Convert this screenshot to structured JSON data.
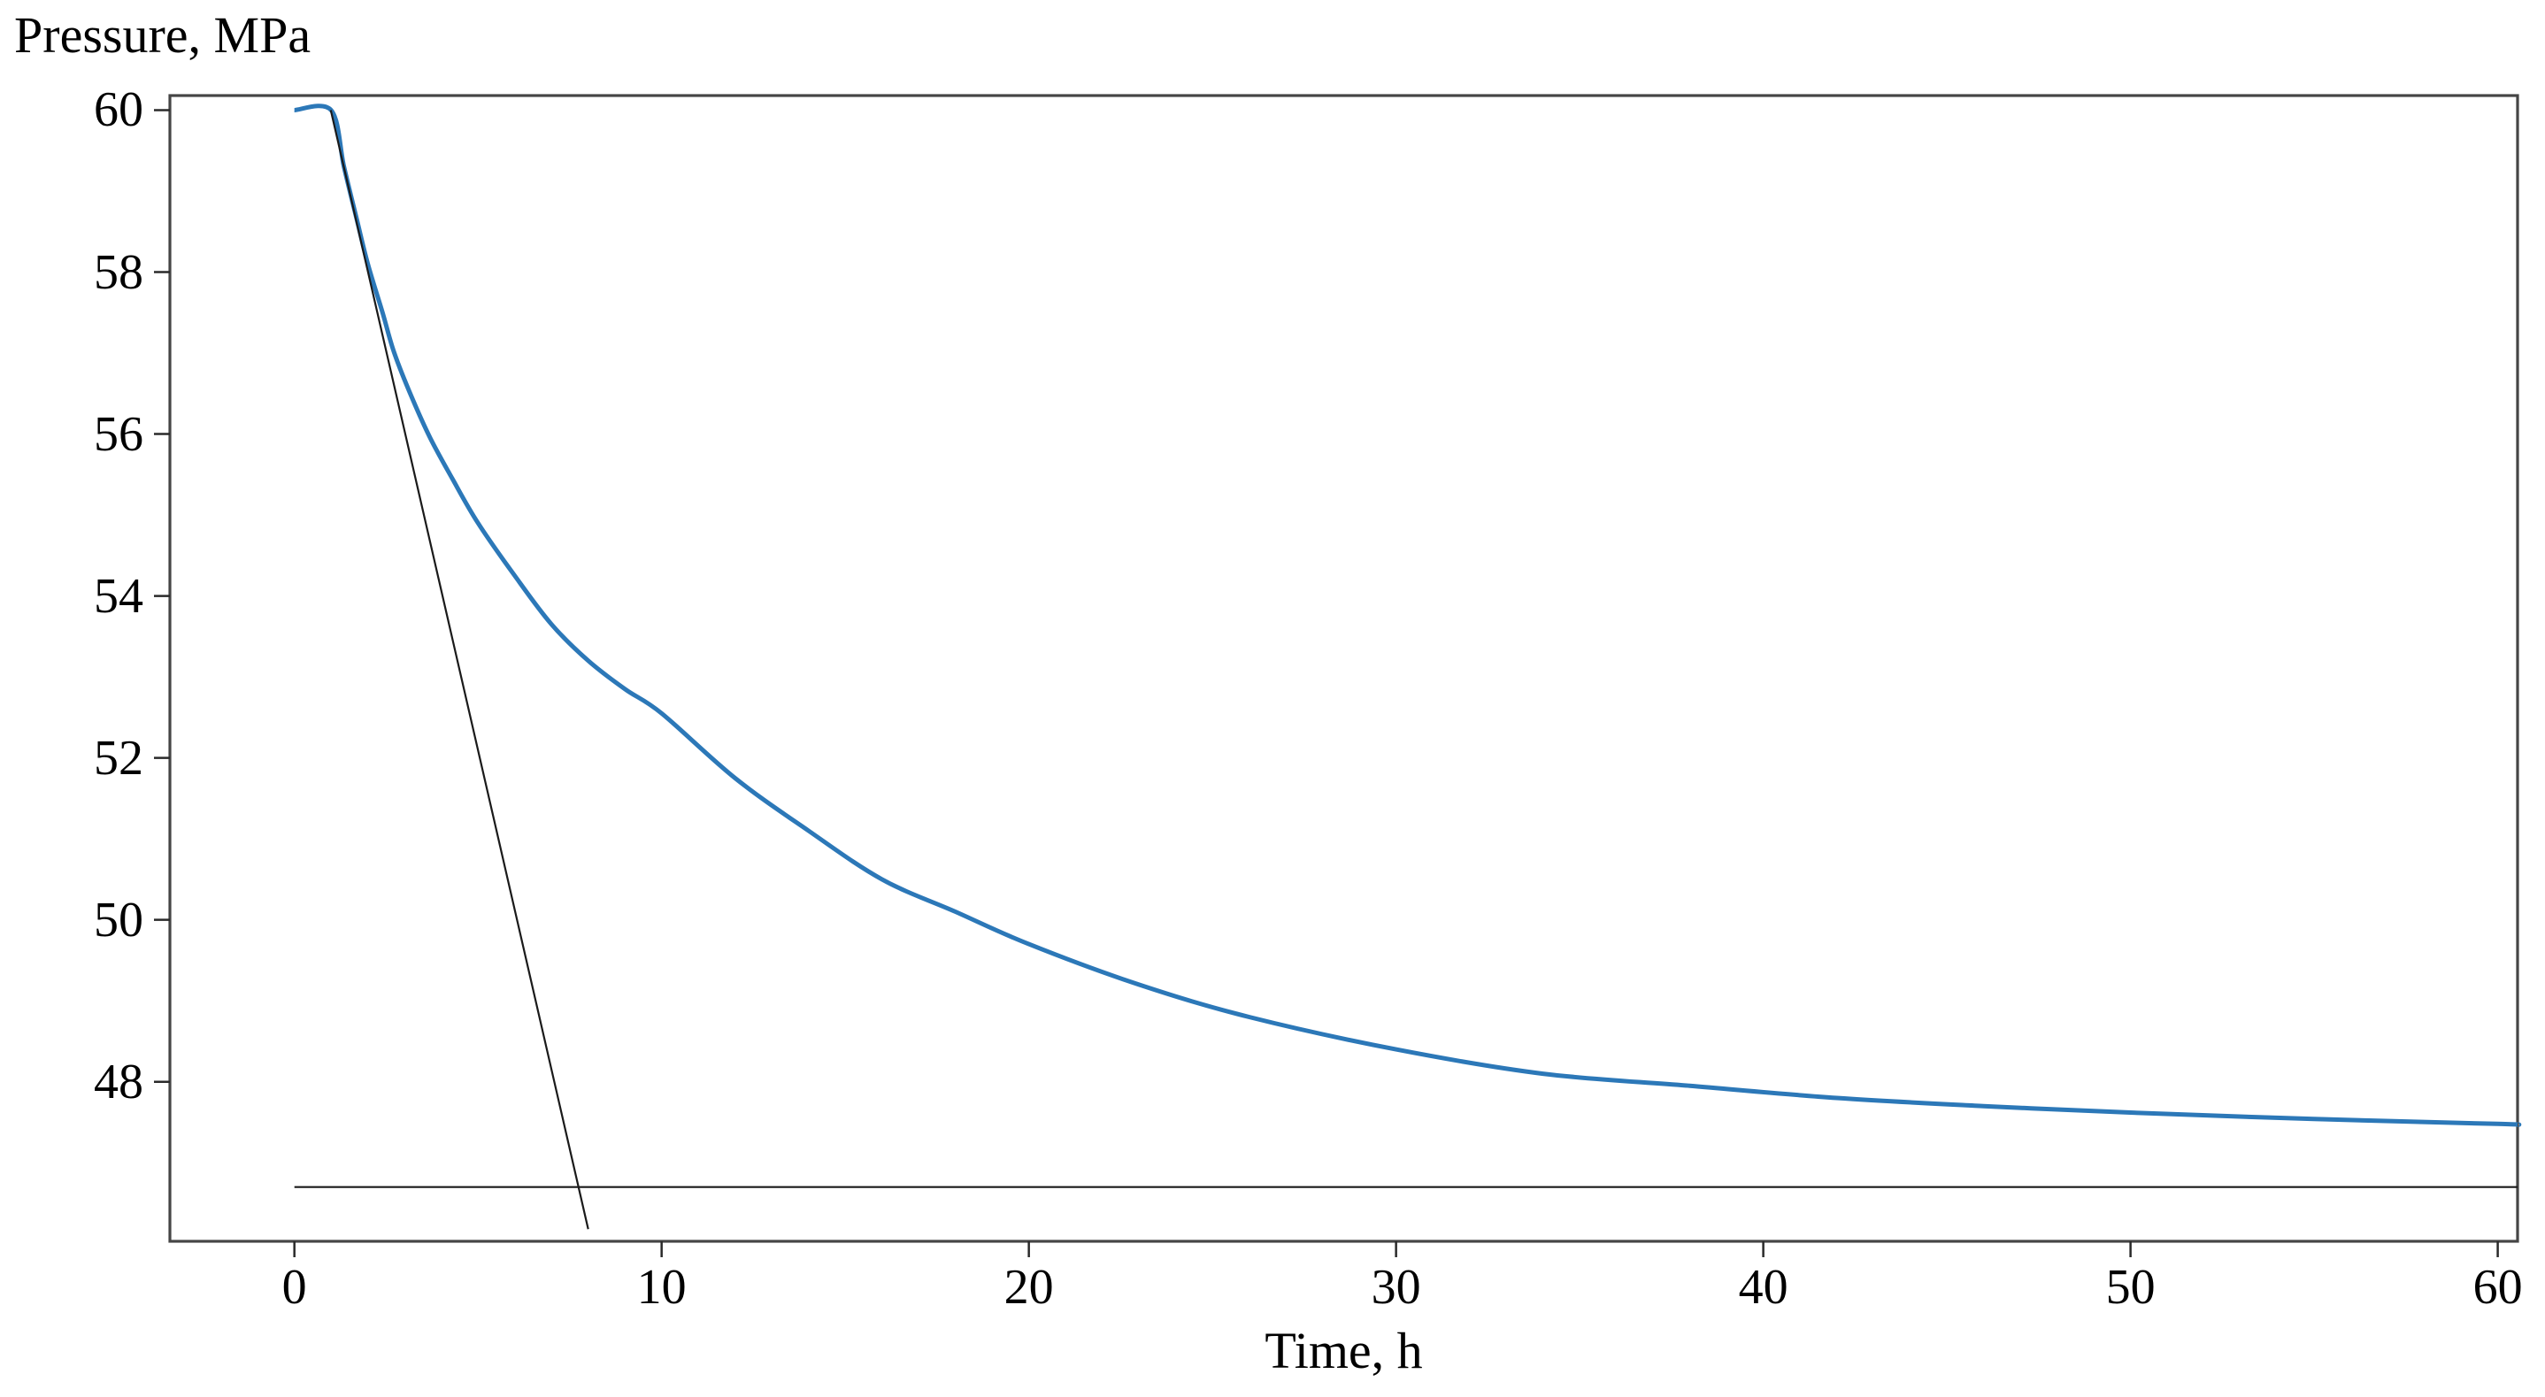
{
  "page": {
    "background": "#ffffff"
  },
  "chart_data": {
    "type": "line",
    "title": "",
    "ylabel": "Pressure, MPa",
    "xlabel": "Time, h",
    "xlim": [
      -3.39,
      60.54
    ],
    "ylim": [
      46.03,
      60.18
    ],
    "grid": false,
    "legend": "none",
    "frame_color": "#454545",
    "tick_color": "#2a2a2a",
    "text_color": "#000000",
    "x_ticks": [
      0,
      10,
      20,
      30,
      40,
      50,
      60
    ],
    "x_tick_labels": [
      "0",
      "10",
      "20",
      "30",
      "40",
      "50",
      "60"
    ],
    "y_ticks": [
      60,
      58,
      56,
      54,
      52,
      50,
      48
    ],
    "y_tick_labels": [
      "60",
      "58",
      "56",
      "54",
      "52",
      "50",
      "48"
    ],
    "series": [
      {
        "name": "pressure-decline-curve",
        "mode": "smooth",
        "color": "#2c78b8",
        "width": 5,
        "points": [
          [
            0,
            60
          ],
          [
            1,
            60
          ],
          [
            1.35,
            59.3
          ],
          [
            1.7,
            58.65
          ],
          [
            2,
            58.1
          ],
          [
            2.4,
            57.5
          ],
          [
            2.72,
            57.0
          ],
          [
            3.2,
            56.45
          ],
          [
            3.7,
            55.95
          ],
          [
            4.3,
            55.45
          ],
          [
            5,
            54.9
          ],
          [
            6,
            54.25
          ],
          [
            7,
            53.65
          ],
          [
            8,
            53.2
          ],
          [
            9,
            52.85
          ],
          [
            10,
            52.55
          ],
          [
            12,
            51.75
          ],
          [
            14,
            51.1
          ],
          [
            16,
            50.5
          ],
          [
            18,
            50.1
          ],
          [
            20,
            49.7
          ],
          [
            23,
            49.2
          ],
          [
            26,
            48.8
          ],
          [
            30,
            48.4
          ],
          [
            34,
            48.1
          ],
          [
            38,
            47.95
          ],
          [
            42,
            47.8
          ],
          [
            46,
            47.7
          ],
          [
            50,
            47.62
          ],
          [
            55,
            47.54
          ],
          [
            60,
            47.48
          ],
          [
            60.54,
            47.47
          ]
        ]
      },
      {
        "name": "tangent-reference-line",
        "mode": "straight",
        "color": "#1a1a1a",
        "width": 2.2,
        "points": [
          [
            0.99,
            60.0
          ],
          [
            8.0,
            46.18
          ]
        ]
      },
      {
        "name": "horizontal-reference-line",
        "mode": "straight",
        "color": "#1a1a1a",
        "width": 2.2,
        "points": [
          [
            0,
            46.7
          ],
          [
            60.54,
            46.7
          ]
        ]
      }
    ]
  }
}
